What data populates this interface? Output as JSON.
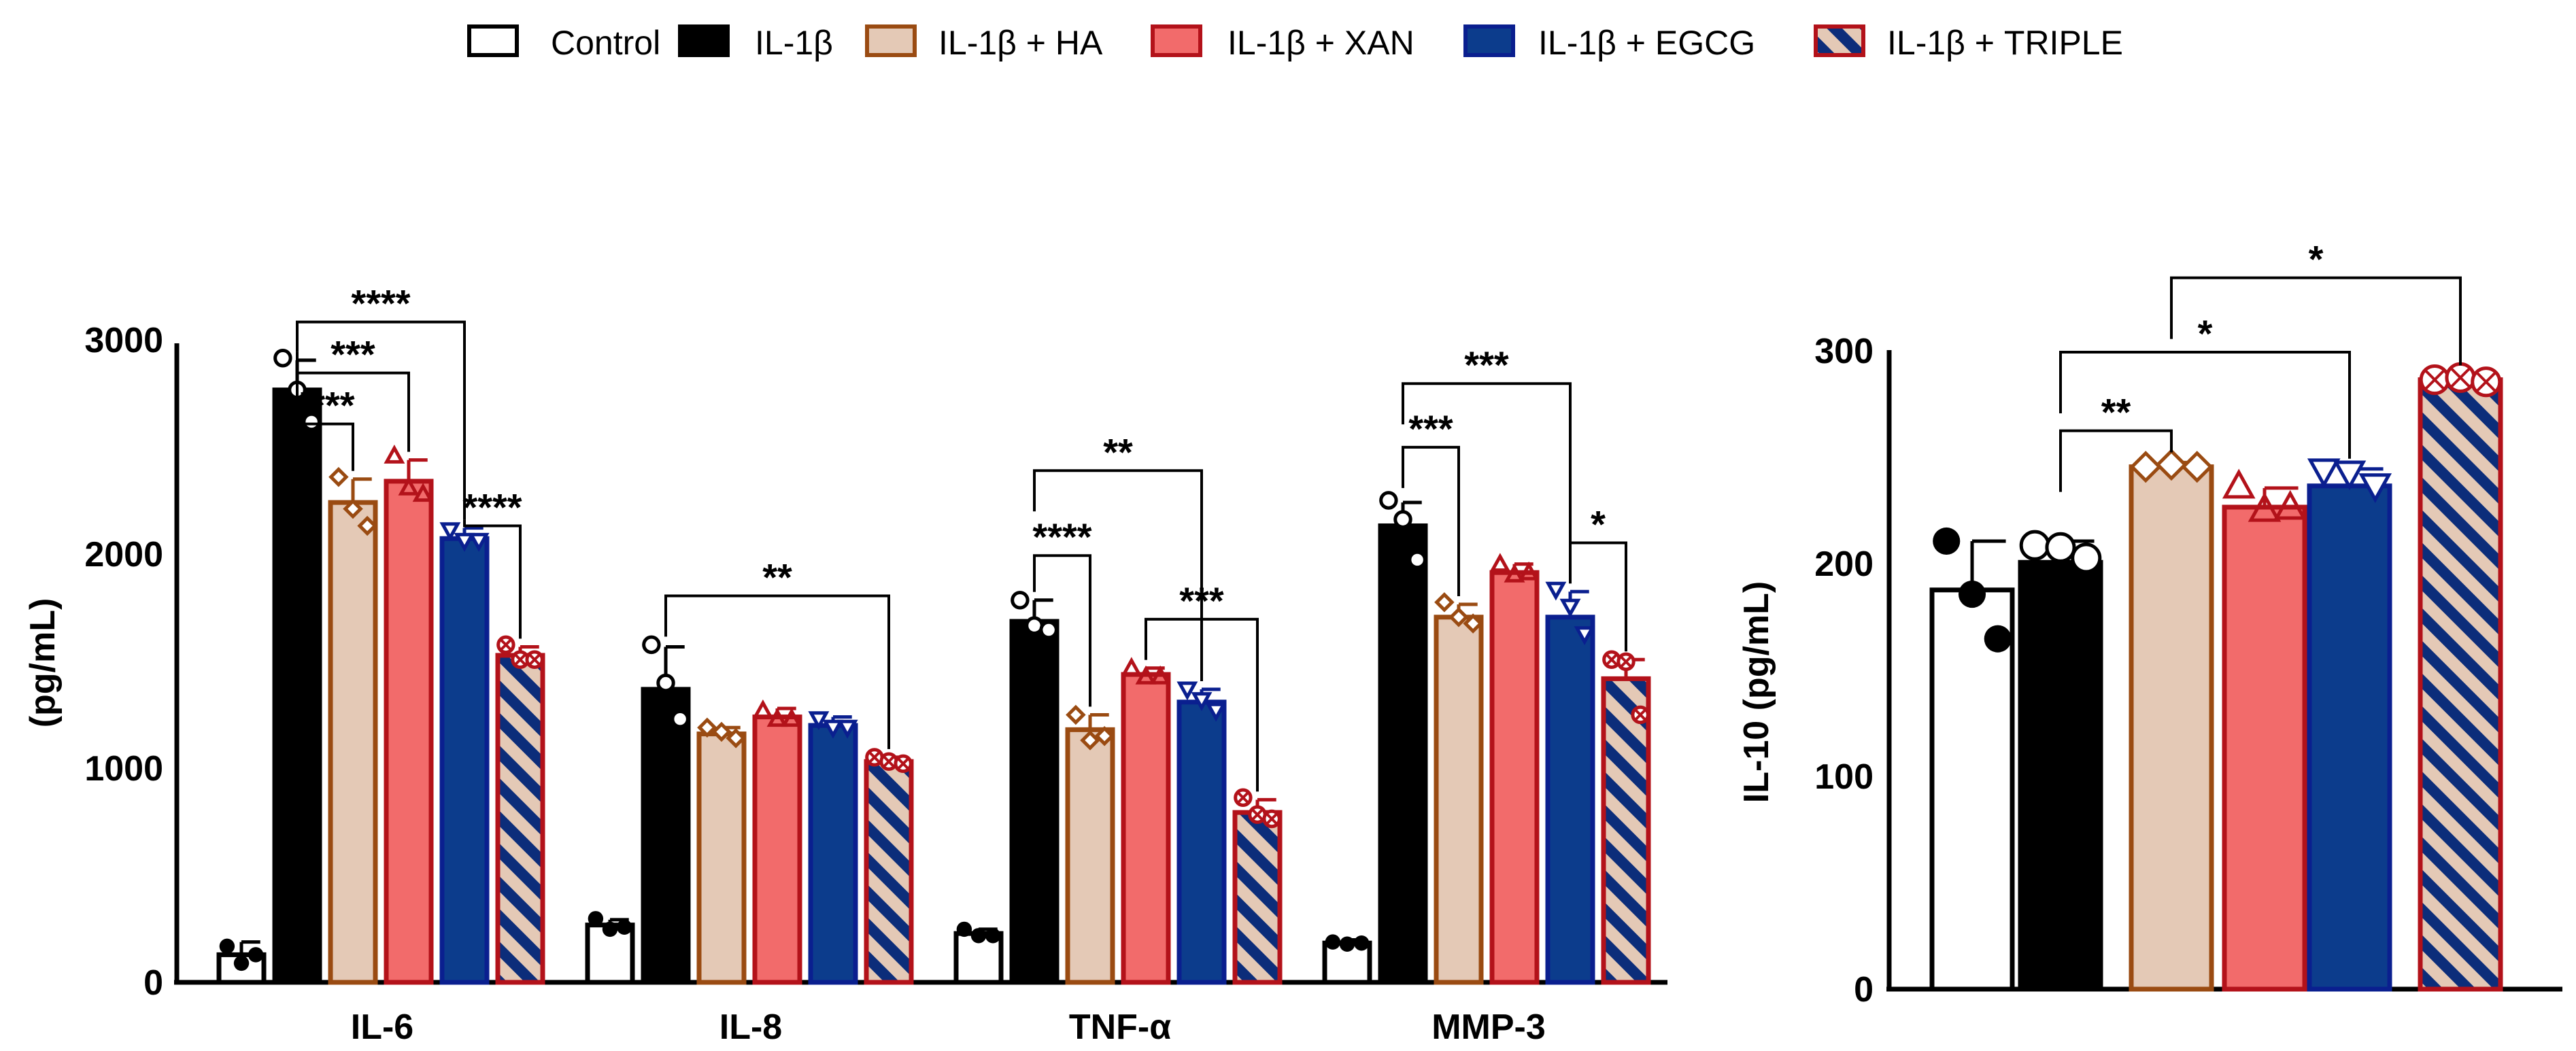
{
  "legend": {
    "items": [
      {
        "key": "control",
        "label": "Control"
      },
      {
        "key": "il1b",
        "label": "IL-1β"
      },
      {
        "key": "ha",
        "label": "IL-1β + HA"
      },
      {
        "key": "xan",
        "label": "IL-1β + XAN"
      },
      {
        "key": "egcg",
        "label": "IL-1β + EGCG"
      },
      {
        "key": "triple",
        "label": "IL-1β + TRIPLE"
      }
    ]
  },
  "colors": {
    "control_fill": "#ffffff",
    "control_stroke": "#000000",
    "il1b_fill": "#000000",
    "il1b_stroke": "#000000",
    "ha_fill": "#e4c9b6",
    "ha_stroke": "#9a4b12",
    "xan_fill": "#f26b6b",
    "xan_stroke": "#b3121a",
    "egcg_fill": "#0c3c8c",
    "egcg_stroke": "#0a1f8f",
    "triple_fill": "#e4c9b6",
    "triple_stroke": "#b3121a",
    "triple_hatch": "#0c2d7a"
  },
  "chart_data": [
    {
      "type": "bar",
      "title": "",
      "xlabel": "",
      "ylabel": "(pg/mL)",
      "ylim": [
        0,
        3000
      ],
      "yticks": [
        "0",
        "1000",
        "2000",
        "3000"
      ],
      "categories": [
        "IL-6",
        "IL-8",
        "TNF-α",
        "MMP-3"
      ],
      "series": [
        {
          "name": "Control",
          "key": "control",
          "values": [
            130,
            270,
            230,
            185
          ],
          "errors": [
            60,
            25,
            20,
            15
          ],
          "points": [
            [
              170,
              90,
              130
            ],
            [
              300,
              250,
              260
            ],
            [
              250,
              220,
              220
            ],
            [
              190,
              180,
              185
            ]
          ]
        },
        {
          "name": "IL-1β",
          "key": "il1b",
          "values": [
            2790,
            1380,
            1700,
            2150
          ],
          "errors": [
            140,
            200,
            100,
            110
          ],
          "points": [
            [
              2940,
              2790,
              2640
            ],
            [
              1590,
              1410,
              1240
            ],
            [
              1800,
              1680,
              1660
            ],
            [
              2270,
              2180,
              1990
            ]
          ]
        },
        {
          "name": "IL-1β + HA",
          "key": "ha",
          "values": [
            2260,
            1170,
            1190,
            1720
          ],
          "errors": [
            110,
            30,
            70,
            60
          ],
          "points": [
            [
              2380,
              2230,
              2150
            ],
            [
              1200,
              1180,
              1150
            ],
            [
              1260,
              1140,
              1160
            ],
            [
              1790,
              1720,
              1690
            ]
          ]
        },
        {
          "name": "IL-1β + XAN",
          "key": "xan",
          "values": [
            2360,
            1250,
            1450,
            1930
          ],
          "errors": [
            100,
            40,
            30,
            40
          ],
          "points": [
            [
              2480,
              2330,
              2300
            ],
            [
              1280,
              1240,
              1240
            ],
            [
              1480,
              1440,
              1440
            ],
            [
              1970,
              1920,
              1930
            ]
          ]
        },
        {
          "name": "IL-1β + EGCG",
          "key": "egcg",
          "values": [
            2090,
            1210,
            1320,
            1720
          ],
          "errors": [
            50,
            40,
            60,
            120
          ],
          "points": [
            [
              2130,
              2080,
              2080
            ],
            [
              1240,
              1200,
              1200
            ],
            [
              1380,
              1330,
              1280
            ],
            [
              1850,
              1770,
              1640
            ]
          ]
        },
        {
          "name": "IL-1β + TRIPLE",
          "key": "triple",
          "values": [
            1540,
            1040,
            800,
            1430
          ],
          "errors": [
            40,
            20,
            60,
            90
          ],
          "points": [
            [
              1590,
              1520,
              1520
            ],
            [
              1060,
              1040,
              1030
            ],
            [
              870,
              790,
              770
            ],
            [
              1520,
              1510,
              1260
            ]
          ]
        }
      ],
      "significance": [
        {
          "label": "****",
          "cat": 0,
          "from": 1,
          "to": 2,
          "y": 2630
        },
        {
          "label": "***",
          "cat": 0,
          "from": 1,
          "to": 3,
          "y": 2870
        },
        {
          "label": "****",
          "cat": 0,
          "from": 1,
          "to": 4,
          "y": 3110
        },
        {
          "label": "****",
          "cat": 0,
          "from": 4,
          "to": 5,
          "y": 2150
        },
        {
          "label": "**",
          "cat": 1,
          "from": 1,
          "to": 5,
          "y": 1820
        },
        {
          "label": "****",
          "cat": 2,
          "from": 1,
          "to": 2,
          "y": 2010
        },
        {
          "label": "**",
          "cat": 2,
          "from": 1,
          "to": 4,
          "y": 2410
        },
        {
          "label": "***",
          "cat": 2,
          "from": 3,
          "to": 5,
          "y": 1710
        },
        {
          "label": "***",
          "cat": 3,
          "from": 1,
          "to": 2,
          "y": 2520
        },
        {
          "label": "***",
          "cat": 3,
          "from": 1,
          "to": 4,
          "y": 2820
        },
        {
          "label": "*",
          "cat": 3,
          "from": 4,
          "to": 5,
          "y": 2070
        }
      ]
    },
    {
      "type": "bar",
      "title": "",
      "xlabel": "",
      "ylabel": "IL-10 (pg/mL)",
      "ylim": [
        0,
        300
      ],
      "yticks": [
        "0",
        "100",
        "200",
        "300"
      ],
      "categories": [
        "Control",
        "IL-1β",
        "IL-1β + HA",
        "IL-1β + XAN",
        "IL-1β + EGCG",
        "IL-1β + TRIPLE"
      ],
      "series": [
        {
          "name": "IL-10",
          "keys": [
            "control",
            "il1b",
            "ha",
            "xan",
            "egcg",
            "triple"
          ],
          "values": [
            188,
            201,
            246,
            227,
            237,
            287
          ],
          "errors": [
            23,
            10,
            2,
            9,
            8,
            2
          ],
          "points": [
            [
              211,
              186,
              165
            ],
            [
              209,
              208,
              203
            ],
            [
              246,
              247,
              246
            ],
            [
              237,
              226,
              227
            ],
            [
              244,
              243,
              237
            ],
            [
              287,
              288,
              286
            ]
          ]
        }
      ],
      "significance": [
        {
          "label": "**",
          "from": 1,
          "to": 2,
          "y": 263
        },
        {
          "label": "*",
          "from": 1,
          "to": 4,
          "y": 300
        },
        {
          "label": "*",
          "from": 2,
          "to": 5,
          "y": 335
        }
      ]
    }
  ]
}
